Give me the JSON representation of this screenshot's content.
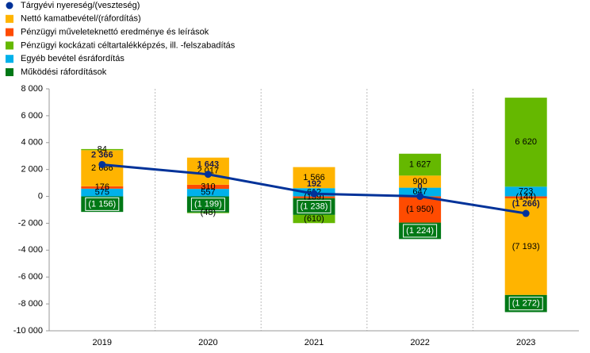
{
  "chart_data": {
    "type": "bar",
    "categories": [
      "2019",
      "2020",
      "2021",
      "2022",
      "2023"
    ],
    "series": [
      {
        "name": "Tárgyévi nyereség/(veszteség)",
        "type": "line",
        "color": "#003299",
        "values": [
          2366,
          1643,
          192,
          0,
          -1266
        ],
        "value_labels": [
          "2 366",
          "1 643",
          "192",
          "0",
          "(1 266)"
        ]
      },
      {
        "name": "Nettó kamatbevétel/(ráfordítás)",
        "color": "#FFB400",
        "values": [
          2686,
          2017,
          1566,
          900,
          -7193
        ],
        "value_labels": [
          "2 686",
          "2 017",
          "1 566",
          "900",
          "(7 193)"
        ]
      },
      {
        "name": "Pénzügyi műveleteknettó eredménye és leírások",
        "color": "#FF4B00",
        "values": [
          176,
          310,
          -139,
          -1950,
          -144
        ],
        "value_labels": [
          "176",
          "310",
          "(139)",
          "(1 950)",
          "(144)"
        ]
      },
      {
        "name": "Pénzügyi kockázati céltartalékképzés, ill. -felszabadítás",
        "color": "#65B800",
        "values": [
          84,
          -48,
          -610,
          1627,
          6620
        ],
        "value_labels": [
          "84",
          "(48)",
          "(610)",
          "1 627",
          "6 620"
        ]
      },
      {
        "name": "Egyéb bevétel ésráfordítás",
        "color": "#00B1EA",
        "values": [
          575,
          557,
          612,
          647,
          723
        ],
        "value_labels": [
          "575",
          "557",
          "612",
          "647",
          "723"
        ]
      },
      {
        "name": "Működési ráfordítások",
        "color": "#007816",
        "values": [
          -1156,
          -1199,
          -1238,
          -1224,
          -1272
        ],
        "value_labels": [
          "(1 156)",
          "(1 199)",
          "(1 238)",
          "(1 224)",
          "(1 272)"
        ]
      }
    ],
    "ylim": [
      -10000,
      8000
    ],
    "yticks": [
      {
        "value": -10000,
        "label": "-10 000"
      },
      {
        "value": -8000,
        "label": "-8 000"
      },
      {
        "value": -6000,
        "label": "-6 000"
      },
      {
        "value": -4000,
        "label": "-4 000"
      },
      {
        "value": -2000,
        "label": "-2 000"
      },
      0,
      {
        "value": 2000,
        "label": "2 000"
      },
      {
        "value": 4000,
        "label": "4 000"
      },
      {
        "value": 6000,
        "label": "6 000"
      },
      {
        "value": 8000,
        "label": "8 000"
      }
    ]
  }
}
